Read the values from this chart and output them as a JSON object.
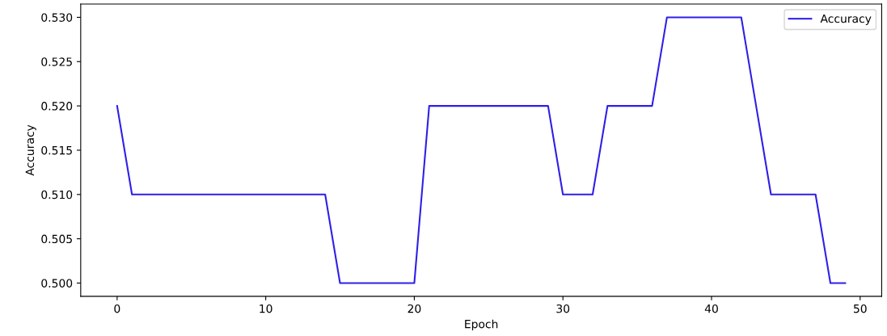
{
  "chart_data": {
    "type": "line",
    "xlabel": "Epoch",
    "ylabel": "Accuracy",
    "x": [
      0,
      1,
      2,
      3,
      4,
      5,
      6,
      7,
      8,
      9,
      10,
      11,
      12,
      13,
      14,
      15,
      16,
      17,
      18,
      19,
      20,
      21,
      22,
      23,
      24,
      25,
      26,
      27,
      28,
      29,
      30,
      31,
      32,
      33,
      34,
      35,
      36,
      37,
      38,
      39,
      40,
      41,
      42,
      43,
      44,
      45,
      46,
      47,
      48,
      49
    ],
    "series": [
      {
        "name": "Accuracy",
        "color": "#2e1fe8",
        "values": [
          0.52,
          0.51,
          0.51,
          0.51,
          0.51,
          0.51,
          0.51,
          0.51,
          0.51,
          0.51,
          0.51,
          0.51,
          0.51,
          0.51,
          0.51,
          0.5,
          0.5,
          0.5,
          0.5,
          0.5,
          0.5,
          0.52,
          0.52,
          0.52,
          0.52,
          0.52,
          0.52,
          0.52,
          0.52,
          0.52,
          0.51,
          0.51,
          0.51,
          0.52,
          0.52,
          0.52,
          0.52,
          0.53,
          0.53,
          0.53,
          0.53,
          0.53,
          0.53,
          0.52,
          0.51,
          0.51,
          0.51,
          0.51,
          0.5,
          0.5
        ]
      }
    ],
    "xlim": [
      -2.45,
      51.45
    ],
    "xticks": [
      0,
      10,
      20,
      30,
      40,
      50
    ],
    "ylim": [
      0.4985,
      0.5315
    ],
    "yticks": [
      {
        "value": 0.5,
        "label": "0.500"
      },
      {
        "value": 0.505,
        "label": "0.505"
      },
      {
        "value": 0.51,
        "label": "0.510"
      },
      {
        "value": 0.515,
        "label": "0.515"
      },
      {
        "value": 0.52,
        "label": "0.520"
      },
      {
        "value": 0.525,
        "label": "0.525"
      },
      {
        "value": 0.53,
        "label": "0.530"
      }
    ],
    "legend": "top right",
    "grid": false,
    "line_style": "solid"
  }
}
